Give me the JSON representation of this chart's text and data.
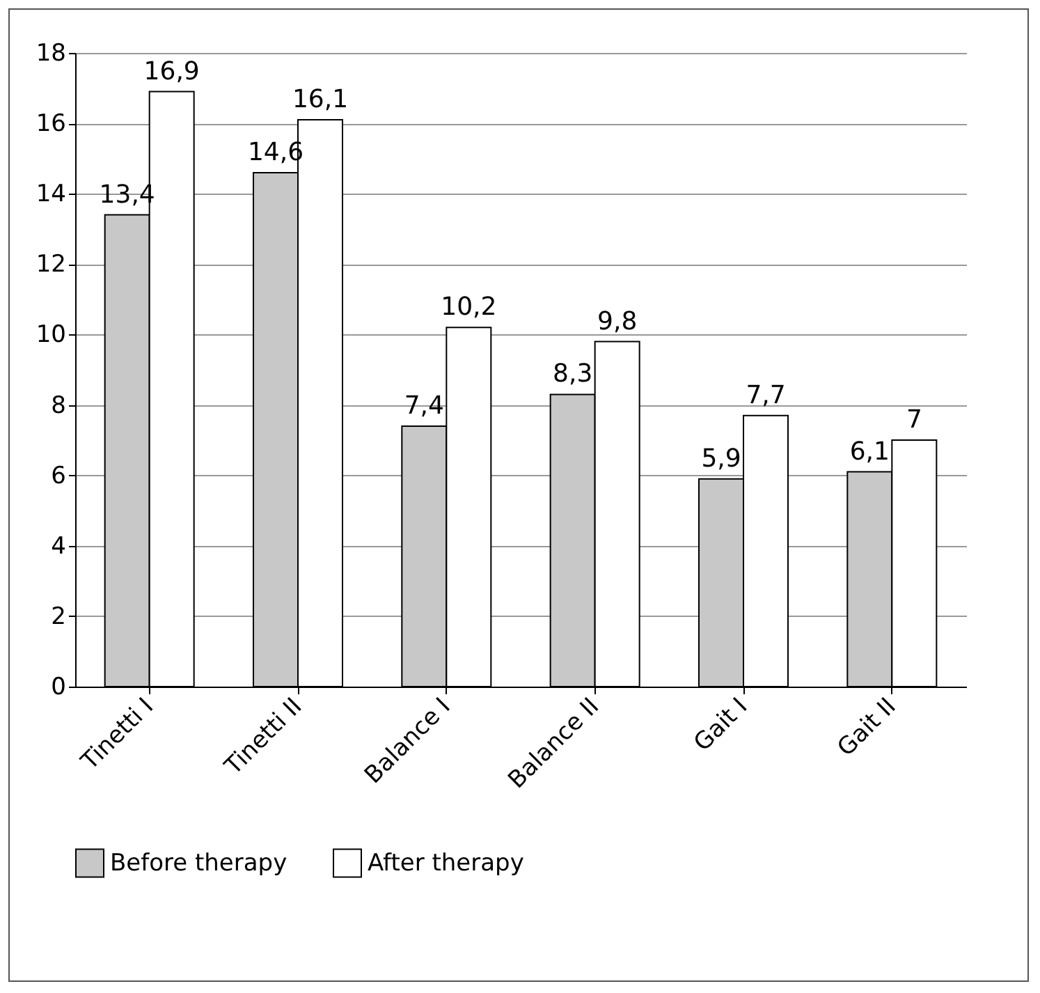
{
  "chart_data": {
    "type": "bar",
    "categories": [
      "Tinetti I",
      "Tinetti II",
      "Balance I",
      "Balance II",
      "Gait I",
      "Gait II"
    ],
    "series": [
      {
        "name": "Before therapy",
        "color": "#c8c8c8",
        "values": [
          13.4,
          14.6,
          7.4,
          8.3,
          5.9,
          6.1
        ],
        "value_labels": [
          "13,4",
          "14,6",
          "7,4",
          "8,3",
          "5,9",
          "6,1"
        ]
      },
      {
        "name": "After therapy",
        "color": "#ffffff",
        "values": [
          16.9,
          16.1,
          10.2,
          9.8,
          7.7,
          7
        ],
        "value_labels": [
          "16,9",
          "16,1",
          "10,2",
          "9,8",
          "7,7",
          "7"
        ]
      }
    ],
    "ylim": [
      0,
      18
    ],
    "yticks": [
      0,
      2,
      4,
      6,
      8,
      10,
      12,
      14,
      16,
      18
    ],
    "grid": "y",
    "legend": "bottom"
  }
}
